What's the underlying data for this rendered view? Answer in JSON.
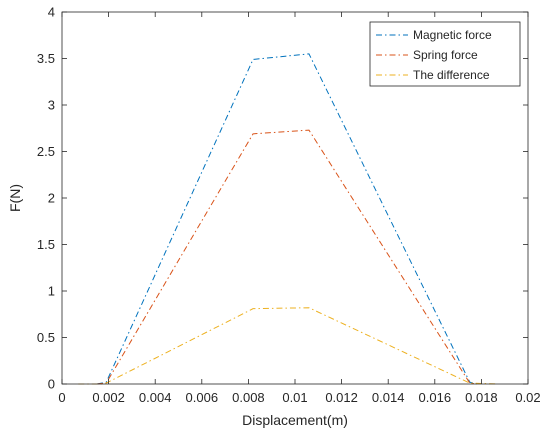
{
  "chart_data": {
    "type": "line",
    "title": "",
    "xlabel": "Displacement(m)",
    "ylabel": "F(N)",
    "xlim": [
      0,
      0.02
    ],
    "ylim": [
      0,
      4
    ],
    "xticks": [
      0,
      0.002,
      0.004,
      0.006,
      0.008,
      0.01,
      0.012,
      0.014,
      0.016,
      0.018,
      0.02
    ],
    "xtick_labels": [
      "0",
      "0.002",
      "0.004",
      "0.006",
      "0.008",
      "0.01",
      "0.012",
      "0.014",
      "0.016",
      "0.018",
      "0.02"
    ],
    "yticks": [
      0,
      0.5,
      1,
      1.5,
      2,
      2.5,
      3,
      3.5,
      4
    ],
    "ytick_labels": [
      "0",
      "0.5",
      "1",
      "1.5",
      "2",
      "2.5",
      "3",
      "3.5",
      "4"
    ],
    "legend_position": "top-right",
    "grid": false,
    "series": [
      {
        "name": "Magnetic force",
        "color": "#0072BD",
        "x": [
          0.0015,
          0.0019,
          0.0082,
          0.0106,
          0.0175,
          0.0178
        ],
        "y": [
          0,
          0.02,
          3.49,
          3.55,
          0.02,
          0
        ]
      },
      {
        "name": "Spring force",
        "color": "#D95319",
        "x": [
          0.0015,
          0.0019,
          0.0082,
          0.0106,
          0.0175,
          0.0178
        ],
        "y": [
          0,
          0.01,
          2.69,
          2.73,
          0.01,
          0
        ]
      },
      {
        "name": "The difference",
        "color": "#EDB120",
        "x": [
          0.0007,
          0.0017,
          0.0019,
          0.0082,
          0.0106,
          0.0175,
          0.0187
        ],
        "y": [
          0,
          0,
          0.01,
          0.81,
          0.82,
          0.01,
          0
        ]
      }
    ]
  }
}
